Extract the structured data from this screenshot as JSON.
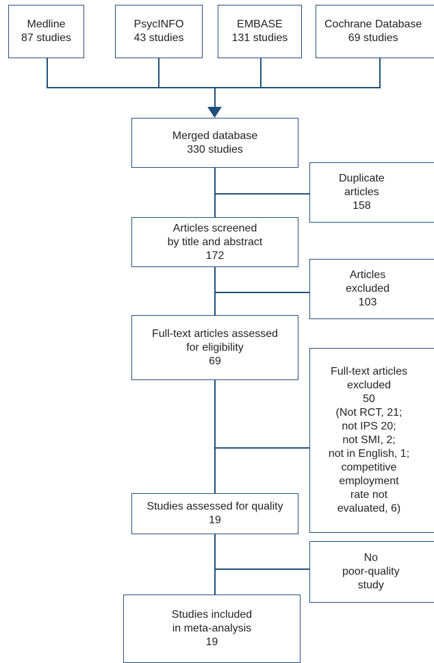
{
  "sources": [
    {
      "name": "Medline",
      "count": "87 studies"
    },
    {
      "name": "PsycINFO",
      "count": "43 studies"
    },
    {
      "name": "EMBASE",
      "count": "131 studies"
    },
    {
      "name": "Cochrane Database",
      "count": "69 studies"
    }
  ],
  "steps": {
    "merged": "Merged database\n330 studies",
    "screened": "Articles screened\nby title and abstract\n172",
    "fulltext": "Full-text articles assessed\nfor eligibility\n69",
    "quality": "Studies assessed for quality\n19",
    "included": "Studies included\nin meta-analysis\n19"
  },
  "exclusions": {
    "duplicates": "Duplicate\narticles\n158",
    "excluded": "Articles\nexcluded\n103",
    "fulltext_excluded": "Full-text articles\nexcluded\n50\n(Not RCT, 21;\nnot IPS 20;\nnot SMI, 2;\nnot in English, 1;\ncompetitive\nemployment\nrate not\nevaluated, 6)",
    "poor_quality": "No\npoor-quality\nstudy"
  },
  "colors": {
    "line": "#1f4e79",
    "text": "#231f20"
  }
}
